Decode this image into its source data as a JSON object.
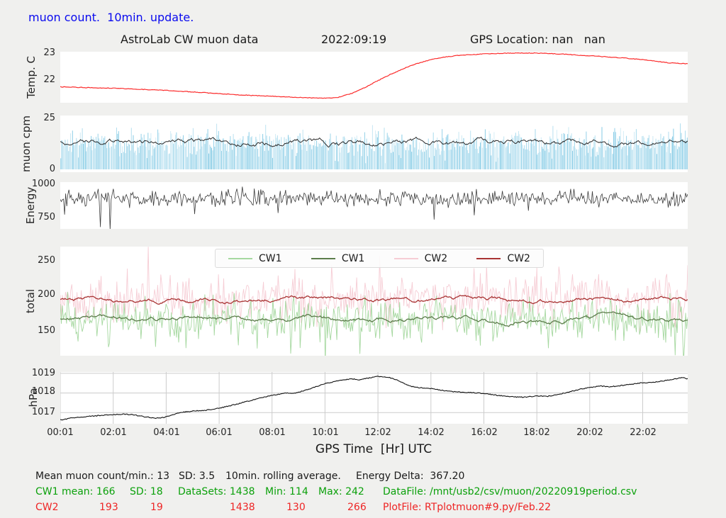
{
  "header": {
    "status_text": "muon count.  10min. update.",
    "color": "#0a0aee"
  },
  "title": {
    "main": "AstroLab CW muon data",
    "datetime": "2022:09:19",
    "gps": "GPS Location: nan   nan"
  },
  "xaxis": {
    "label": "GPS Time  [Hr] UTC",
    "xmin": 0,
    "xmax": 23.7,
    "tick_hours": [
      0,
      2,
      4,
      6,
      8,
      10,
      12,
      14,
      16,
      18,
      20,
      22
    ],
    "tick_labels": [
      "00:01",
      "02:01",
      "04:01",
      "06:01",
      "08:01",
      "10:01",
      "12:02",
      "14:02",
      "16:02",
      "18:02",
      "20:02",
      "22:02"
    ]
  },
  "stats": {
    "line1": {
      "color": "#1a1a1a",
      "segments": [
        "Mean muon count/min.: 13",
        "SD: 3.5",
        "10min. rolling average.",
        "Energy Delta:  367.20"
      ]
    },
    "line2": {
      "color": "#0ca10c",
      "segments": [
        "CW1 mean: 166",
        "SD: 18",
        "DataSets: 1438",
        "Min: 114",
        "Max: 242",
        "DataFile: /mnt/usb2/csv/muon/20220919period.csv"
      ]
    },
    "line3": {
      "color": "#ee2525",
      "segments": [
        "CW2",
        "193",
        "19",
        "1438",
        "130",
        "266",
        "PlotFile: RTplotmuon#9.py/Feb.22"
      ]
    }
  },
  "chart_data": {
    "type": "line",
    "title": "AstroLab CW muon data",
    "xlabel": "GPS Time  [Hr] UTC",
    "grid_color": "#cccccc",
    "panels": [
      {
        "name": "temperature",
        "ylabel": "Temp. C",
        "ylim": [
          21.16,
          23.05
        ],
        "grid": false,
        "yticks": [
          {
            "value": 23,
            "label": "23"
          },
          {
            "value": 22,
            "label": "22"
          }
        ],
        "series": [
          {
            "name": "temp-c",
            "type": "line",
            "color": "#fb2b2b",
            "width": 1.2,
            "jitter": 0.012,
            "n": 500,
            "points": [
              [
                0,
                21.75
              ],
              [
                1,
                21.72
              ],
              [
                2,
                21.7
              ],
              [
                3,
                21.66
              ],
              [
                4,
                21.62
              ],
              [
                5,
                21.56
              ],
              [
                6,
                21.5
              ],
              [
                7,
                21.44
              ],
              [
                8,
                21.4
              ],
              [
                9,
                21.36
              ],
              [
                9.8,
                21.33
              ],
              [
                10.4,
                21.34
              ],
              [
                11,
                21.5
              ],
              [
                11.5,
                21.72
              ],
              [
                12,
                21.98
              ],
              [
                12.5,
                22.22
              ],
              [
                13,
                22.44
              ],
              [
                13.5,
                22.62
              ],
              [
                14,
                22.76
              ],
              [
                14.5,
                22.85
              ],
              [
                15,
                22.91
              ],
              [
                16,
                22.97
              ],
              [
                17,
                23.0
              ],
              [
                18,
                23.0
              ],
              [
                19,
                22.96
              ],
              [
                20,
                22.9
              ],
              [
                21,
                22.84
              ],
              [
                22,
                22.76
              ],
              [
                23,
                22.64
              ],
              [
                23.7,
                22.6
              ]
            ]
          }
        ]
      },
      {
        "name": "muon-cpm",
        "ylabel": "muon cpm",
        "ylim": [
          -1.4,
          26.4
        ],
        "grid": false,
        "yticks": [
          {
            "value": 25,
            "label": "25"
          },
          {
            "value": 0,
            "label": "0"
          }
        ],
        "series": [
          {
            "name": "muon-counts",
            "type": "bars",
            "n": 640,
            "mean": 13,
            "sd": 3.6,
            "clip": [
              3,
              22.5
            ],
            "color": "#7ec8e4"
          },
          {
            "name": "muon-rolling-avg",
            "type": "walk",
            "n": 560,
            "mean": 13.2,
            "amp": 1.5,
            "rev": 0.07,
            "color": "#2b2b2b",
            "width": 1.0
          }
        ]
      },
      {
        "name": "energy",
        "ylabel": "Energy",
        "ylim": [
          665,
          1016
        ],
        "grid": false,
        "yticks": [
          {
            "value": 1000,
            "label": "1000"
          },
          {
            "value": 750,
            "label": "750"
          }
        ],
        "series": [
          {
            "name": "energy",
            "type": "noise",
            "n": 580,
            "mean": 893,
            "sd": 30,
            "spikes": {
              "prob": 0.022,
              "min": -200,
              "max": -60
            },
            "color": "#3c3c3c",
            "width": 0.8
          }
        ]
      },
      {
        "name": "total",
        "ylabel": "total",
        "ylim": [
          114,
          270
        ],
        "grid": false,
        "yticks": [
          {
            "value": 250,
            "label": "250"
          },
          {
            "value": 200,
            "label": "200"
          },
          {
            "value": 150,
            "label": "150"
          }
        ],
        "legend": [
          {
            "label": "CW1",
            "color": "#a6d8a0"
          },
          {
            "label": "CW1",
            "color": "#5c7d4b"
          },
          {
            "label": "CW2",
            "color": "#f6cdd5"
          },
          {
            "label": "CW2",
            "color": "#a93434"
          }
        ],
        "series": [
          {
            "name": "cw2-raw",
            "type": "noise",
            "n": 600,
            "mean": 194,
            "sd": 16,
            "spikes": {
              "prob": 0.05,
              "min": -20,
              "max": 60
            },
            "color": "#f6cdd5",
            "width": 0.9
          },
          {
            "name": "cw1-raw",
            "type": "noise",
            "n": 600,
            "mean": 165,
            "sd": 15,
            "spikes": {
              "prob": 0.05,
              "min": -55,
              "max": 25
            },
            "color": "#a6d8a0",
            "width": 0.9
          },
          {
            "name": "cw1-avg",
            "type": "walk",
            "n": 520,
            "mean": 166,
            "amp": 3.4,
            "rev": 0.05,
            "color": "#5c7d4b",
            "width": 1.3
          },
          {
            "name": "cw2-avg",
            "type": "walk",
            "n": 520,
            "mean": 194,
            "amp": 3.4,
            "rev": 0.05,
            "color": "#a93434",
            "width": 1.3
          }
        ]
      },
      {
        "name": "pressure",
        "ylabel": "hPa",
        "ylim": [
          1016.43,
          1019.07
        ],
        "grid": true,
        "yticks": [
          {
            "value": 1019,
            "label": "1019"
          },
          {
            "value": 1018,
            "label": "1018"
          },
          {
            "value": 1017,
            "label": "1017"
          }
        ],
        "series": [
          {
            "name": "hpa",
            "type": "line",
            "color": "#111111",
            "width": 1.1,
            "jitter": 0.022,
            "n": 620,
            "points": [
              [
                0,
                1016.62
              ],
              [
                0.4,
                1016.72
              ],
              [
                0.8,
                1016.78
              ],
              [
                1.2,
                1016.82
              ],
              [
                1.6,
                1016.86
              ],
              [
                2,
                1016.9
              ],
              [
                2.4,
                1016.92
              ],
              [
                2.8,
                1016.88
              ],
              [
                3.2,
                1016.78
              ],
              [
                3.6,
                1016.72
              ],
              [
                3.9,
                1016.75
              ],
              [
                4.2,
                1016.88
              ],
              [
                4.5,
                1017.0
              ],
              [
                5,
                1017.08
              ],
              [
                5.5,
                1017.12
              ],
              [
                6,
                1017.22
              ],
              [
                6.5,
                1017.38
              ],
              [
                7,
                1017.55
              ],
              [
                7.5,
                1017.72
              ],
              [
                8,
                1017.88
              ],
              [
                8.5,
                1018.0
              ],
              [
                8.8,
                1017.97
              ],
              [
                9.2,
                1018.12
              ],
              [
                9.6,
                1018.3
              ],
              [
                10,
                1018.48
              ],
              [
                10.5,
                1018.62
              ],
              [
                11,
                1018.72
              ],
              [
                11.3,
                1018.68
              ],
              [
                11.7,
                1018.78
              ],
              [
                12,
                1018.85
              ],
              [
                12.4,
                1018.8
              ],
              [
                12.8,
                1018.62
              ],
              [
                13.2,
                1018.35
              ],
              [
                13.5,
                1018.28
              ],
              [
                14,
                1018.22
              ],
              [
                14.5,
                1018.12
              ],
              [
                15,
                1018.05
              ],
              [
                15.5,
                1018.02
              ],
              [
                16,
                1017.98
              ],
              [
                16.5,
                1017.88
              ],
              [
                17,
                1017.82
              ],
              [
                17.5,
                1017.78
              ],
              [
                18,
                1017.85
              ],
              [
                18.4,
                1017.83
              ],
              [
                18.8,
                1017.92
              ],
              [
                19.2,
                1018.05
              ],
              [
                19.6,
                1018.18
              ],
              [
                20,
                1018.28
              ],
              [
                20.4,
                1018.35
              ],
              [
                20.8,
                1018.32
              ],
              [
                21.2,
                1018.38
              ],
              [
                21.6,
                1018.45
              ],
              [
                22,
                1018.52
              ],
              [
                22.4,
                1018.55
              ],
              [
                22.8,
                1018.62
              ],
              [
                23.2,
                1018.72
              ],
              [
                23.5,
                1018.78
              ],
              [
                23.7,
                1018.72
              ]
            ]
          }
        ]
      }
    ]
  }
}
